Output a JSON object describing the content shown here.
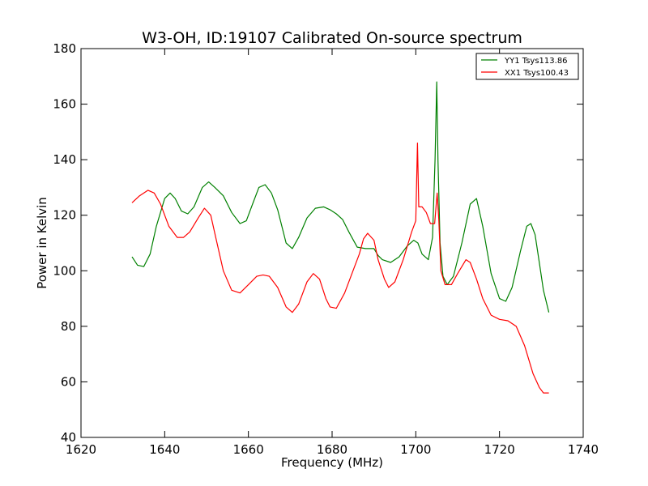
{
  "chart_data": {
    "type": "line",
    "title": "W3-OH, ID:19107 Calibrated On-source spectrum",
    "xlabel": "Frequency (MHz)",
    "ylabel": "Power in Kelvin",
    "xlim": [
      1620,
      1740
    ],
    "ylim": [
      40,
      180
    ],
    "xticks": [
      1620,
      1640,
      1660,
      1680,
      1700,
      1720,
      1740
    ],
    "yticks": [
      40,
      60,
      80,
      100,
      120,
      140,
      160,
      180
    ],
    "grid": false,
    "legend_position": "top-right",
    "series": [
      {
        "name": "YY1 Tsys113.86",
        "color": "#008000",
        "x": [
          1632.2,
          1633.5,
          1635,
          1636.5,
          1638,
          1640,
          1641.3,
          1642.5,
          1644,
          1645.5,
          1647,
          1649,
          1650.5,
          1652,
          1654,
          1656,
          1658,
          1659.5,
          1661,
          1662.5,
          1664,
          1665.5,
          1667,
          1669,
          1670.5,
          1672,
          1674,
          1676,
          1678,
          1679.5,
          1681,
          1682.5,
          1684,
          1686,
          1688,
          1690,
          1691,
          1692,
          1694,
          1696,
          1698,
          1699.5,
          1700.5,
          1701.5,
          1703,
          1704,
          1704.6,
          1705,
          1705.3,
          1705.8,
          1706.5,
          1707.5,
          1709,
          1711,
          1713,
          1714.5,
          1716,
          1718,
          1720,
          1721.5,
          1723,
          1725,
          1726.5,
          1727.5,
          1728.5,
          1729.5,
          1730.5,
          1731.8
        ],
        "values": [
          105,
          102,
          101.5,
          106,
          116,
          126,
          128,
          126,
          121.5,
          120.5,
          123,
          130,
          132,
          130,
          127,
          121,
          117,
          118,
          124,
          130,
          131,
          128,
          122,
          110,
          108,
          112,
          119,
          122.5,
          123,
          122,
          120.5,
          118.5,
          114,
          108.5,
          108,
          108,
          105.5,
          104,
          103,
          105,
          109,
          111,
          110,
          106,
          104,
          112,
          140,
          168,
          140,
          110,
          98,
          95,
          98,
          110,
          124,
          126,
          116,
          99,
          90,
          89,
          94,
          107,
          116,
          117,
          113,
          103,
          93,
          85
        ]
      },
      {
        "name": "XX1 Tsys100.43",
        "color": "#ff0000",
        "x": [
          1632.2,
          1634,
          1636,
          1637.5,
          1639,
          1641,
          1643,
          1644.5,
          1646,
          1648,
          1649.5,
          1651,
          1652.5,
          1654,
          1656,
          1658,
          1660,
          1662,
          1663.5,
          1665,
          1667,
          1669,
          1670.5,
          1672,
          1674,
          1675.5,
          1677,
          1678.5,
          1679.5,
          1681,
          1683,
          1685,
          1686.5,
          1687.5,
          1688.5,
          1690,
          1691,
          1692.5,
          1693.5,
          1695,
          1697,
          1699,
          1700,
          1700.4,
          1700.7,
          1701.5,
          1702.5,
          1703.5,
          1704.5,
          1705.1,
          1705.5,
          1706,
          1707,
          1708.5,
          1710,
          1712,
          1713,
          1714.5,
          1716,
          1718,
          1720,
          1722,
          1724,
          1726,
          1728,
          1729.5,
          1730.5,
          1731.8
        ],
        "values": [
          124.5,
          127,
          129,
          128,
          124,
          116,
          112,
          112,
          114,
          119,
          122.5,
          120,
          110,
          100,
          93,
          92,
          95,
          98,
          98.5,
          98,
          94,
          87,
          85,
          88,
          96,
          99,
          97,
          90,
          87,
          86.5,
          92,
          100,
          106,
          111.5,
          113.5,
          111,
          104,
          97,
          94,
          96,
          104,
          114,
          118,
          146,
          123,
          123,
          121,
          117,
          117,
          128,
          118,
          100,
          95,
          95,
          99,
          104,
          103,
          97,
          90,
          84,
          82.5,
          82,
          80,
          73,
          63,
          58,
          56,
          56
        ]
      }
    ]
  }
}
